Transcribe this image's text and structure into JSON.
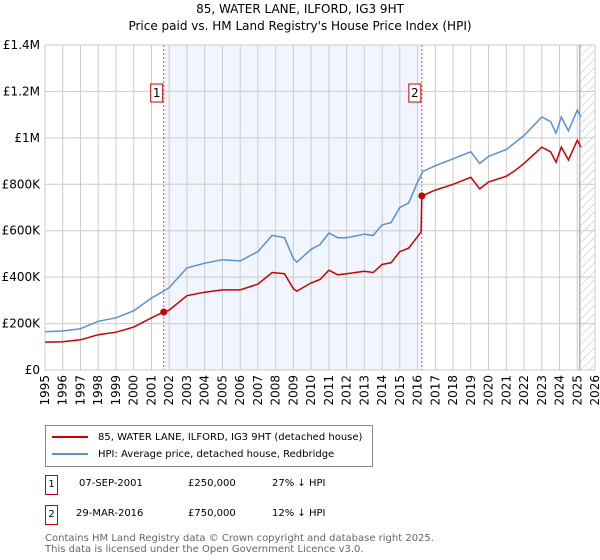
{
  "chart_data": {
    "type": "line",
    "title": "85, WATER LANE, ILFORD, IG3 9HT",
    "subtitle": "Price paid vs. HM Land Registry's House Price Index (HPI)",
    "xlim": [
      1995,
      2026
    ],
    "ylim": [
      0,
      1400000
    ],
    "x_ticks": [
      "1995",
      "1996",
      "1997",
      "1998",
      "1999",
      "2000",
      "2001",
      "2002",
      "2003",
      "2004",
      "2005",
      "2006",
      "2007",
      "2008",
      "2009",
      "2010",
      "2011",
      "2012",
      "2013",
      "2014",
      "2015",
      "2016",
      "2017",
      "2018",
      "2019",
      "2020",
      "2021",
      "2022",
      "2023",
      "2024",
      "2025",
      "2026"
    ],
    "y_ticks": [
      {
        "v": 0,
        "label": "£0"
      },
      {
        "v": 200000,
        "label": "£200K"
      },
      {
        "v": 400000,
        "label": "£400K"
      },
      {
        "v": 600000,
        "label": "£600K"
      },
      {
        "v": 800000,
        "label": "£800K"
      },
      {
        "v": 1000000,
        "label": "£1M"
      },
      {
        "v": 1200000,
        "label": "£1.2M"
      },
      {
        "v": 1400000,
        "label": "£1.4M"
      }
    ],
    "grid": true,
    "shaded_range": [
      2001.69,
      2016.24
    ],
    "forecast_from": 2025.2,
    "series": [
      {
        "name": "85, WATER LANE, ILFORD, IG3 9HT (detached house)",
        "color": "#cc0000",
        "x": [
          1995,
          1996,
          1997,
          1998,
          1999,
          2000,
          2001,
          2001.69,
          2002,
          2003,
          2004,
          2005,
          2006,
          2007,
          2007.8,
          2008.5,
          2009,
          2009.2,
          2010,
          2010.5,
          2011,
          2011.5,
          2012,
          2013,
          2013.5,
          2014,
          2014.5,
          2015,
          2015.5,
          2016.2,
          2016.24,
          2017,
          2018,
          2019,
          2019.5,
          2020,
          2021,
          2021.5,
          2022,
          2022.5,
          2023,
          2023.5,
          2023.8,
          2024.1,
          2024.5,
          2025,
          2025.2
        ],
        "y": [
          120000,
          122000,
          130000,
          152000,
          163000,
          185000,
          225000,
          250000,
          258000,
          320000,
          335000,
          345000,
          345000,
          370000,
          420000,
          415000,
          350000,
          340000,
          375000,
          390000,
          430000,
          410000,
          415000,
          425000,
          420000,
          455000,
          462000,
          510000,
          525000,
          595000,
          750000,
          775000,
          800000,
          830000,
          780000,
          810000,
          835000,
          860000,
          890000,
          925000,
          960000,
          940000,
          895000,
          960000,
          905000,
          990000,
          960000
        ]
      },
      {
        "name": "HPI: Average price, detached house, Redbridge",
        "color": "#5b8fd6",
        "x": [
          1995,
          1996,
          1997,
          1998,
          1999,
          2000,
          2001,
          2001.69,
          2002,
          2003,
          2004,
          2005,
          2006,
          2007,
          2007.8,
          2008.5,
          2009,
          2009.2,
          2010,
          2010.5,
          2011,
          2011.5,
          2012,
          2013,
          2013.5,
          2014,
          2014.5,
          2015,
          2015.5,
          2016,
          2016.3,
          2017,
          2018,
          2019,
          2019.5,
          2020,
          2021,
          2021.5,
          2022,
          2022.5,
          2023,
          2023.5,
          2023.8,
          2024.1,
          2024.5,
          2025,
          2025.2
        ],
        "y": [
          165000,
          168000,
          178000,
          210000,
          225000,
          255000,
          310000,
          340000,
          355000,
          440000,
          460000,
          475000,
          470000,
          510000,
          580000,
          570000,
          480000,
          465000,
          520000,
          540000,
          590000,
          570000,
          570000,
          585000,
          580000,
          625000,
          635000,
          700000,
          720000,
          810000,
          855000,
          880000,
          910000,
          940000,
          890000,
          920000,
          950000,
          980000,
          1010000,
          1050000,
          1090000,
          1070000,
          1020000,
          1090000,
          1030000,
          1120000,
          1090000
        ]
      }
    ],
    "sales": [
      {
        "label": "1",
        "x": 2001.69,
        "y": 250000
      },
      {
        "label": "2",
        "x": 2016.24,
        "y": 750000
      }
    ]
  },
  "legend": {
    "items": [
      "85, WATER LANE, ILFORD, IG3 9HT (detached house)",
      "HPI: Average price, detached house, Redbridge"
    ]
  },
  "transactions": [
    {
      "num": "1",
      "date": "07-SEP-2001",
      "price": "£250,000",
      "hpi": "27% ↓ HPI"
    },
    {
      "num": "2",
      "date": "29-MAR-2016",
      "price": "£750,000",
      "hpi": "12% ↓ HPI"
    }
  ],
  "footer": {
    "line1": "Contains HM Land Registry data © Crown copyright and database right 2025.",
    "line2": "This data is licensed under the Open Government Licence v3.0."
  }
}
